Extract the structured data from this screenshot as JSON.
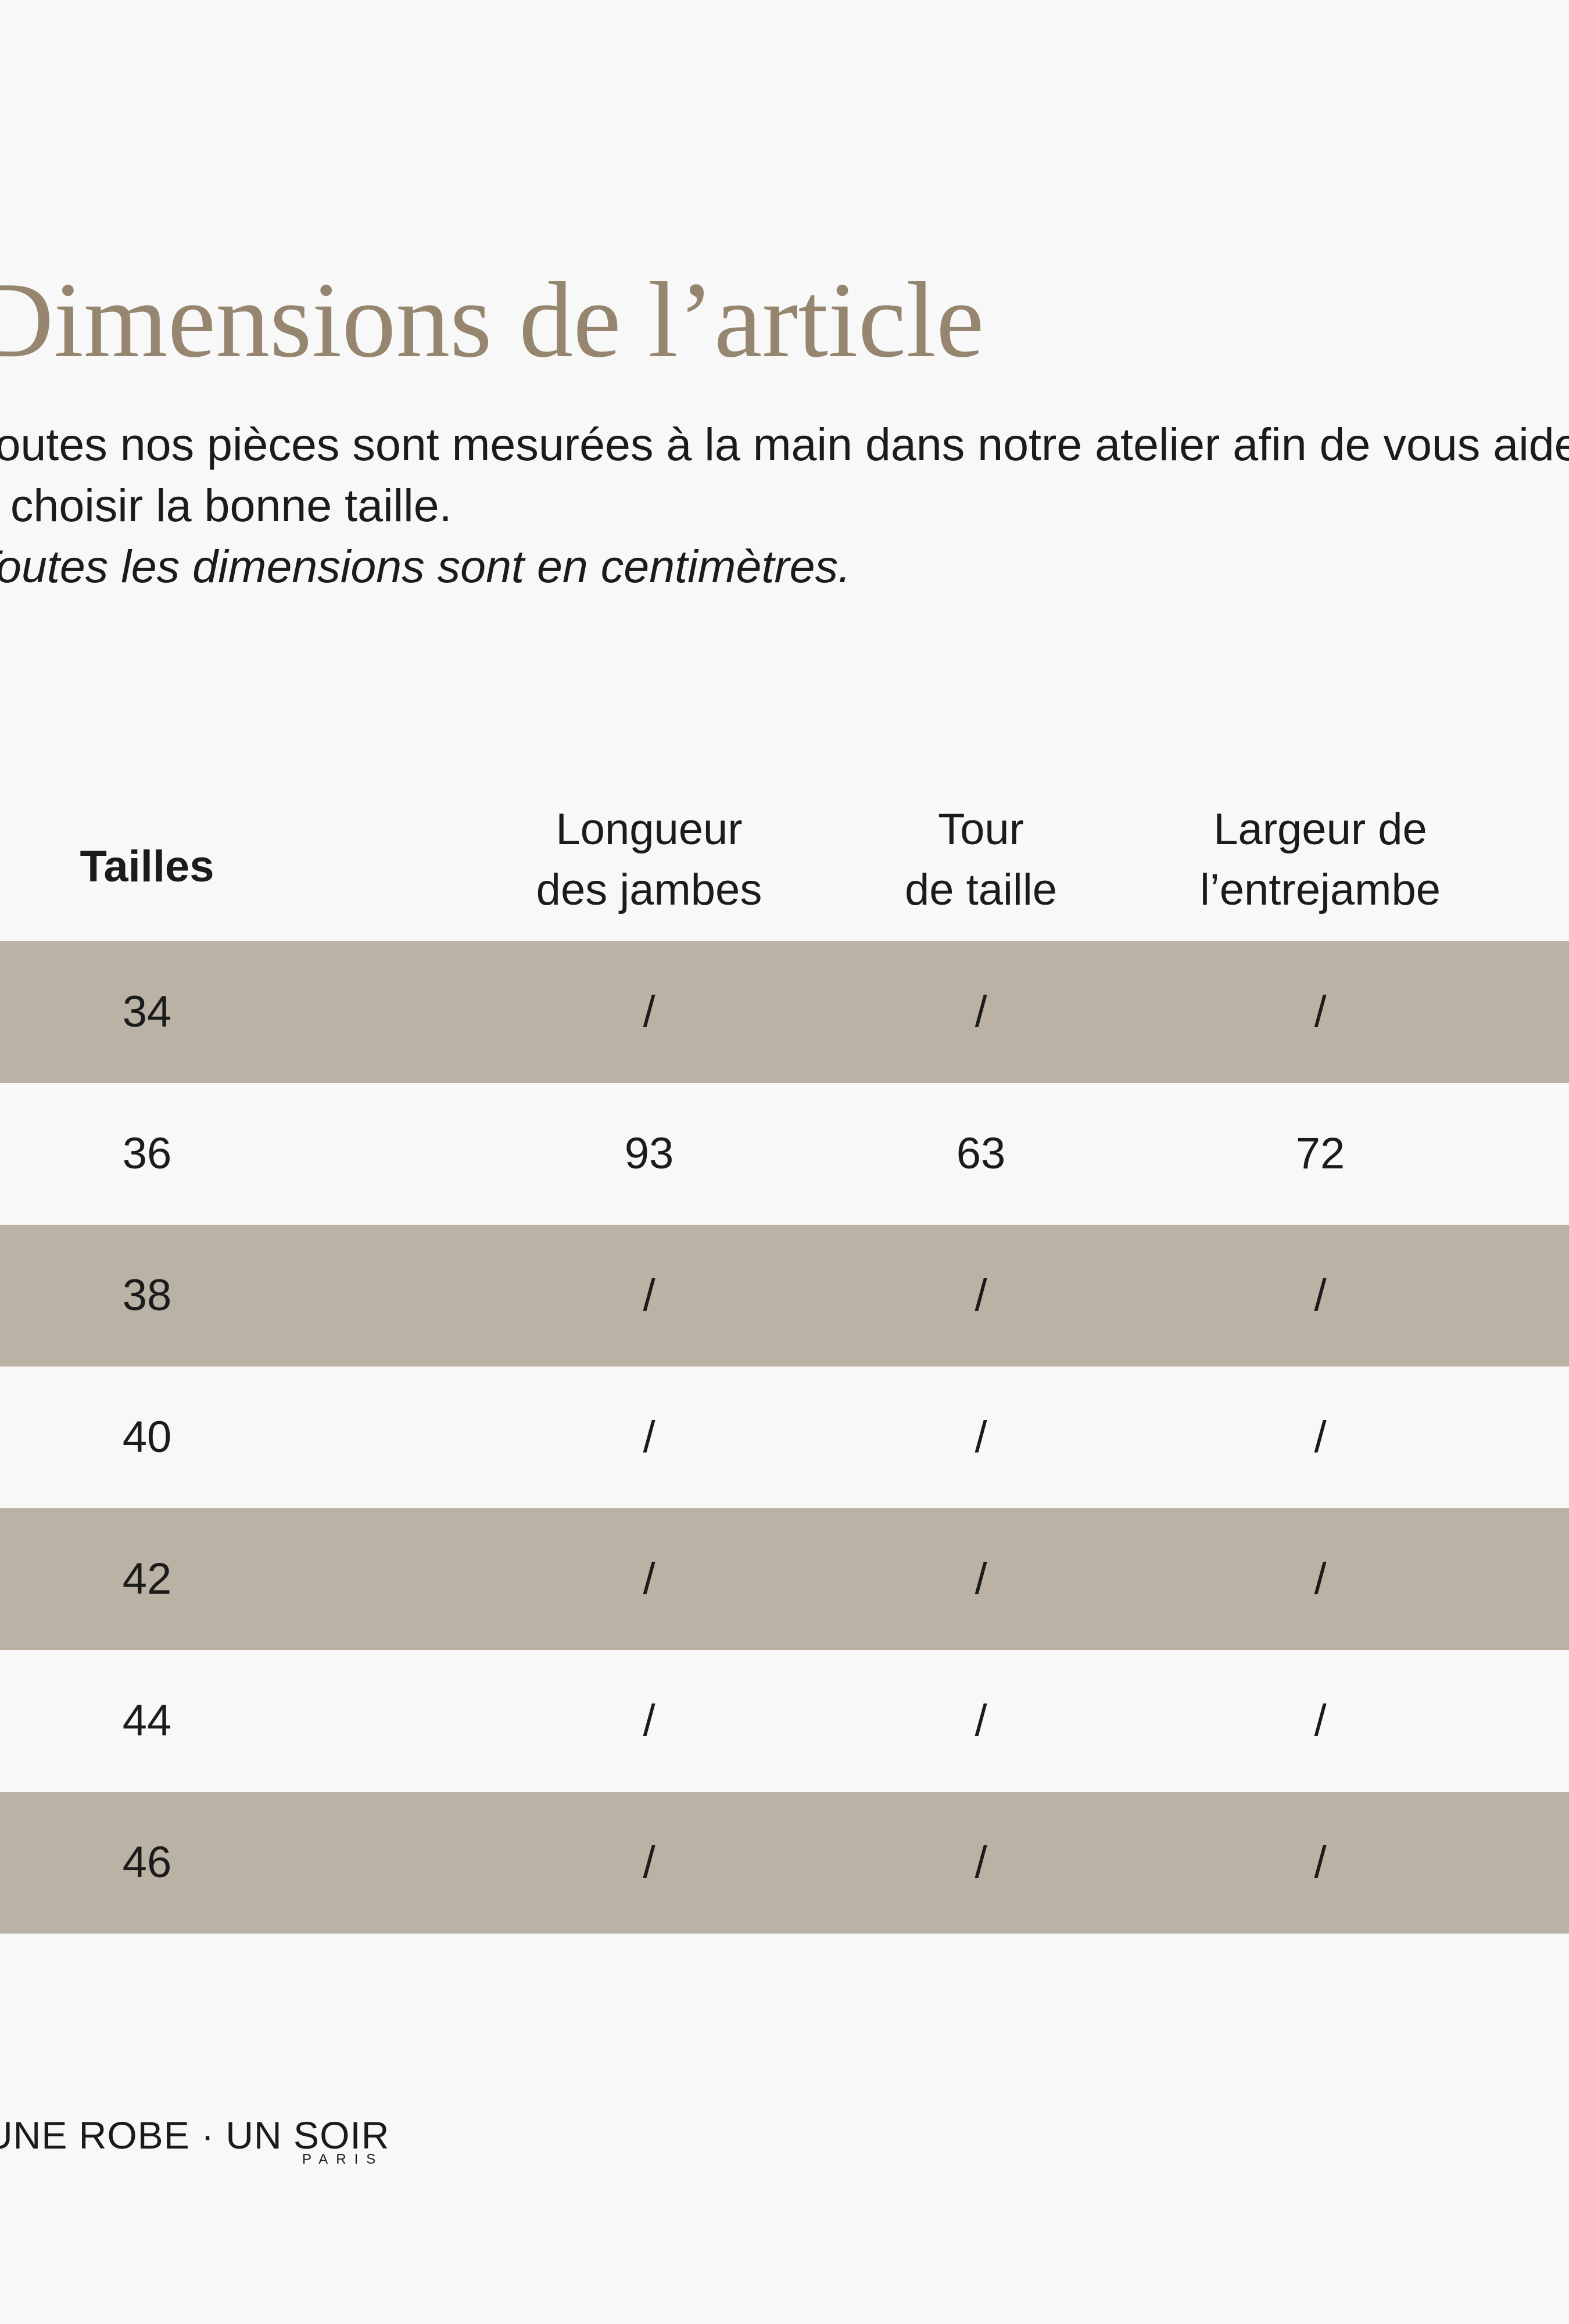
{
  "page": {
    "title": "Dimensions de l’article",
    "intro_line1": "Toutes nos pièces sont mesurées à la main dans notre atelier afin de vous aider",
    "intro_line2": "à choisir la bonne taille.",
    "note": "Toutes les dimensions sont en centimètres."
  },
  "table": {
    "headers": [
      {
        "label": "Tailles"
      },
      {
        "label": "Longueur\ndes jambes"
      },
      {
        "label": "Tour\nde taille"
      },
      {
        "label": "Largeur de\nl’entrejambe"
      }
    ],
    "rows": [
      {
        "cells": [
          "34",
          "/",
          "/",
          "/"
        ]
      },
      {
        "cells": [
          "36",
          "93",
          "63",
          "72"
        ]
      },
      {
        "cells": [
          "38",
          "/",
          "/",
          "/"
        ]
      },
      {
        "cells": [
          "40",
          "/",
          "/",
          "/"
        ]
      },
      {
        "cells": [
          "42",
          "/",
          "/",
          "/"
        ]
      },
      {
        "cells": [
          "44",
          "/",
          "/",
          "/"
        ]
      },
      {
        "cells": [
          "46",
          "/",
          "/",
          "/"
        ]
      }
    ]
  },
  "footer": {
    "brand": "UNE ROBE · UN SOIR",
    "brand_sub": "PARIS"
  },
  "colors": {
    "background": "#f8f8f8",
    "row_beige": "#bab3a5",
    "title_color": "#97866f",
    "text_color": "#1b1b1b",
    "brand_color": "#1a1a1a"
  }
}
